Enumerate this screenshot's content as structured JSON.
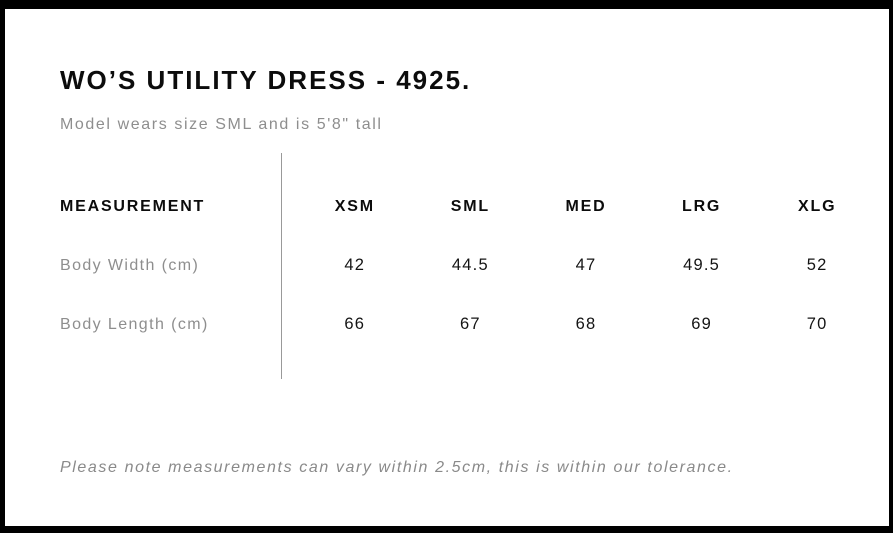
{
  "title": "WO’S UTILITY DRESS - 4925.",
  "subtitle": "Model wears size SML and is 5'8\" tall",
  "footnote": "Please note measurements can vary within 2.5cm, this is within our tolerance.",
  "table": {
    "header_label": "MEASUREMENT",
    "sizes": [
      "XSM",
      "SML",
      "MED",
      "LRG",
      "XLG"
    ],
    "rows": [
      {
        "label": "Body Width (cm)",
        "values": [
          "42",
          "44.5",
          "47",
          "49.5",
          "52"
        ]
      },
      {
        "label": "Body Length (cm)",
        "values": [
          "66",
          "67",
          "68",
          "69",
          "70"
        ]
      }
    ]
  },
  "chart_data": {
    "type": "table",
    "title": "WO’S UTILITY DRESS - 4925.",
    "columns": [
      "MEASUREMENT",
      "XSM",
      "SML",
      "MED",
      "LRG",
      "XLG"
    ],
    "rows": [
      [
        "Body Width (cm)",
        42,
        44.5,
        47,
        49.5,
        52
      ],
      [
        "Body Length (cm)",
        66,
        67,
        68,
        69,
        70
      ]
    ],
    "notes": [
      "Model wears size SML and is 5'8\" tall",
      "Please note measurements can vary within 2.5cm, this is within our tolerance."
    ]
  },
  "colors": {
    "frame_border": "#000000",
    "text_primary": "#0c0c0c",
    "text_muted": "#8e8e8e",
    "divider": "#999999",
    "background": "#ffffff"
  }
}
